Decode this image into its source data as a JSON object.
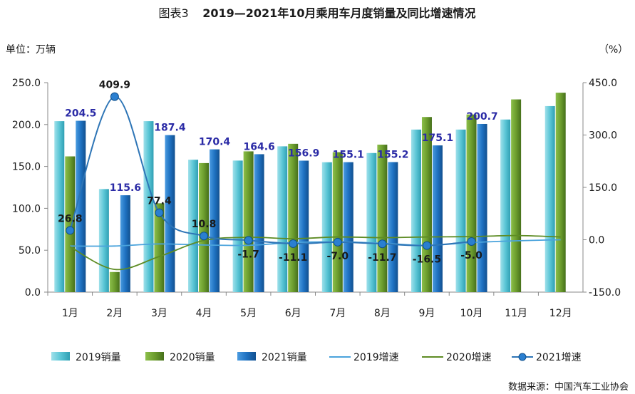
{
  "chart_data": {
    "type": "bar",
    "figure_label": "图表3",
    "title": "2019—2021年10月乘用车月度销量及同比增速情况",
    "left_axis_unit": "单位：万辆",
    "right_axis_unit": "（%）",
    "source": "数据来源：中国汽车工业协会",
    "categories": [
      "1月",
      "2月",
      "3月",
      "4月",
      "5月",
      "6月",
      "7月",
      "8月",
      "9月",
      "10月",
      "11月",
      "12月"
    ],
    "ylim": [
      0,
      250
    ],
    "y_ticks": [
      "0.0",
      "50.0",
      "100.0",
      "150.0",
      "200.0",
      "250.0"
    ],
    "y2lim": [
      -150,
      450
    ],
    "y2_ticks": [
      "-150.0",
      "0.0",
      "150.0",
      "300.0",
      "450.0"
    ],
    "grid": false,
    "legend_position": "bottom",
    "bar_series": [
      {
        "name": "2019销量",
        "color": "#5bc6d6",
        "values": [
          204,
          123,
          204,
          158,
          157,
          174,
          155,
          166,
          194,
          194,
          206,
          222
        ]
      },
      {
        "name": "2020销量",
        "color": "#6c9d2e",
        "values": [
          162,
          24,
          106,
          154,
          168,
          177,
          167,
          176,
          209,
          212,
          230,
          238
        ]
      },
      {
        "name": "2021销量",
        "color": "#1f72c2",
        "values": [
          204.5,
          115.6,
          187.4,
          170.4,
          164.6,
          156.9,
          155.1,
          155.2,
          175.1,
          200.7,
          null,
          null
        ]
      }
    ],
    "line_series": [
      {
        "name": "2019增速",
        "color": "#4aa3dc",
        "values": [
          -18,
          -18,
          -12,
          -15,
          -16,
          -8,
          -6,
          -10,
          -16,
          -8,
          -3,
          0
        ]
      },
      {
        "name": "2020增速",
        "color": "#5e8c24",
        "values": [
          -20,
          -85,
          -48,
          -2,
          7,
          3,
          8,
          6,
          8,
          9,
          12,
          8
        ]
      },
      {
        "name": "2021增速",
        "color": "#2e75b6",
        "values": [
          26.8,
          409.9,
          77.4,
          10.8,
          -1.7,
          -11.1,
          -7.0,
          -11.7,
          -16.5,
          -5.0,
          null,
          null
        ]
      }
    ],
    "bar_labels_2021": [
      "204.5",
      "115.6",
      "187.4",
      "170.4",
      "164.6",
      "156.9",
      "155.1",
      "155.2",
      "175.1",
      "200.7"
    ],
    "growth_labels_2021": [
      "26.8",
      "409.9",
      "77.4",
      "10.8",
      "-1.7",
      "-11.1",
      "-7.0",
      "-11.7",
      "-16.5",
      "-5.0"
    ],
    "legend": [
      "2019销量",
      "2020销量",
      "2021销量",
      "2019增速",
      "2020增速",
      "2021增速"
    ]
  }
}
